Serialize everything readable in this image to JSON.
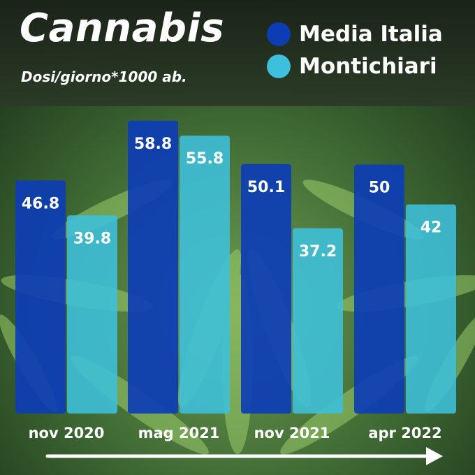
{
  "header": {
    "title": "Cannabis",
    "subtitle": "Dosi/giorno*1000 ab."
  },
  "legend": [
    {
      "label": "Media Italia",
      "color": "#0d3db5"
    },
    {
      "label": "Montichiari",
      "color": "#3ec0dc"
    }
  ],
  "chart_data": {
    "type": "bar",
    "title": "Cannabis",
    "subtitle": "Dosi/giorno*1000 ab.",
    "xlabel": "",
    "ylabel": "",
    "categories": [
      "nov 2020",
      "mag 2021",
      "nov 2021",
      "apr 2022"
    ],
    "series": [
      {
        "name": "Media Italia",
        "values": [
          46.8,
          58.8,
          50.1,
          50
        ],
        "labels": [
          "46.8",
          "58.8",
          "50.1",
          "50"
        ],
        "color": "#0d3db5"
      },
      {
        "name": "Montichiari",
        "values": [
          39.8,
          55.8,
          37.2,
          42
        ],
        "labels": [
          "39.8",
          "55.8",
          "37.2",
          "42"
        ],
        "color": "#3ec0dc"
      }
    ],
    "ylim": [
      0,
      61.3
    ],
    "grid": false,
    "legend_position": "top-right",
    "time_arrow": true
  },
  "colors": {
    "header_bg": "#1f2a1c",
    "foliage_dark": "#2f5a2a",
    "foliage_light": "#8fbf63"
  }
}
